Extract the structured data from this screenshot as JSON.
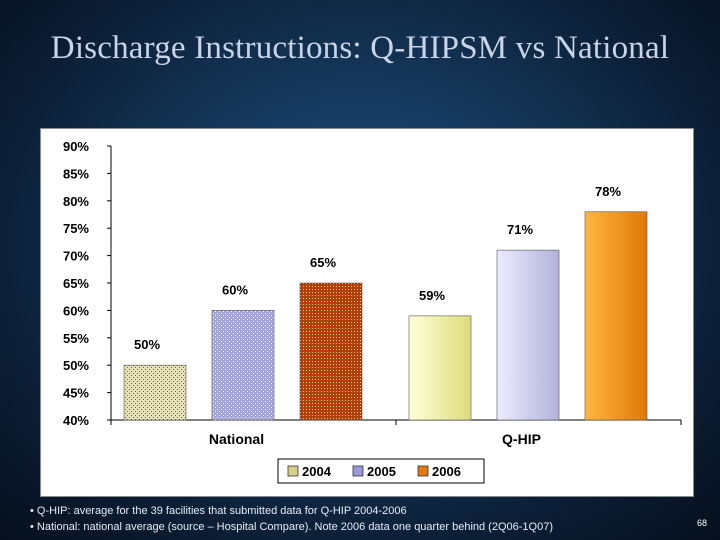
{
  "slide": {
    "title": "Discharge Instructions: Q-HIPSM vs National",
    "page_number": "68",
    "notes": [
      "• Q-HIP: average for the 39 facilities that submitted data for Q-HIP 2004-2006",
      "• National: national average (source – Hospital Compare).  Note 2006 data one quarter behind (2Q06-1Q07)"
    ]
  },
  "chart_data": {
    "type": "bar",
    "title": "",
    "xlabel": "",
    "ylabel": "",
    "ylim": [
      40,
      90
    ],
    "yticks": [
      "40%",
      "45%",
      "50%",
      "55%",
      "60%",
      "65%",
      "70%",
      "75%",
      "80%",
      "85%",
      "90%"
    ],
    "categories": [
      "National",
      "Q-HIP"
    ],
    "series": [
      {
        "name": "2004",
        "values": [
          50,
          59
        ],
        "labels": [
          "50%",
          "59%"
        ]
      },
      {
        "name": "2005",
        "values": [
          60,
          71
        ],
        "labels": [
          "60%",
          "71%"
        ]
      },
      {
        "name": "2006",
        "values": [
          65,
          78
        ],
        "labels": [
          "65%",
          "78%"
        ]
      }
    ],
    "legend": "bottom",
    "grid": false,
    "colors": {
      "2004_national": "#e6e2b8",
      "2005_national": "#9c9cd8",
      "2006_national": "#b5440c",
      "2004_qhip": "#f4f2b0",
      "2005_qhip": "#cccce8",
      "2006_qhip": "#f08a14"
    }
  }
}
